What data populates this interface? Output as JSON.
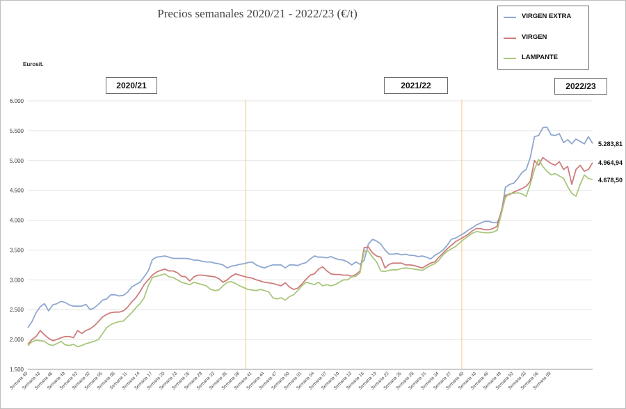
{
  "colors": {
    "extra": "#8fa8d0",
    "virgen": "#cd7d7b",
    "lampante": "#a9c77d",
    "divider": "#f3c87d",
    "grid": "#e4e4e4"
  },
  "chart_data": {
    "type": "line",
    "title": "Precios semanales  2020/21 - 2022/23 (€/t)",
    "ylabel": "Euros/t.",
    "ylim": [
      1500,
      6000
    ],
    "yticks": [
      "1.500",
      "2.000",
      "2.500",
      "3.000",
      "3.500",
      "4.000",
      "4.500",
      "5.000",
      "5.500",
      "6.000"
    ],
    "ytick_values": [
      1500,
      2000,
      2500,
      3000,
      3500,
      4000,
      4500,
      5000,
      5500,
      6000
    ],
    "seasons": [
      {
        "label": "2020/21"
      },
      {
        "label": "2021/22"
      },
      {
        "label": "2022/23"
      }
    ],
    "season_starts": [
      1,
      53,
      105
    ],
    "x_tick_labels": [
      "Semana 40",
      "Semana 43",
      "Semana 46",
      "Semana 49",
      "Semana 52",
      "Semana 02",
      "Semana 05",
      "Semana 08",
      "Semana 11",
      "Semana 14",
      "Semana 17",
      "Semana 20",
      "Semana 23",
      "Semana 26",
      "Semana 29",
      "Semana 32",
      "Semana 35",
      "Semana 38",
      "Semana 41",
      "Semana 44",
      "Semana 47",
      "Semana 50",
      "Semana 01",
      "Semana 04",
      "Semana 07",
      "Semana 10",
      "Semana 13",
      "Semana 16",
      "Semana 19",
      "Semana 22",
      "Semana 25",
      "Semana 28",
      "Semana 31",
      "Semana 34",
      "Semana 37",
      "Semana 40",
      "Semana 43",
      "Semana 46",
      "Semana 49",
      "Semana 52",
      "Semana 03",
      "Semana 06",
      "Semana 09"
    ],
    "series": [
      {
        "name": "VIRGEN EXTRA",
        "last_label": "5.283,81",
        "values": [
          2200,
          2300,
          2450,
          2550,
          2600,
          2480,
          2580,
          2600,
          2640,
          2620,
          2580,
          2560,
          2560,
          2560,
          2590,
          2500,
          2530,
          2590,
          2660,
          2680,
          2750,
          2750,
          2730,
          2740,
          2790,
          2880,
          2920,
          2960,
          3050,
          3150,
          3340,
          3380,
          3390,
          3400,
          3380,
          3360,
          3360,
          3360,
          3360,
          3350,
          3330,
          3330,
          3310,
          3300,
          3300,
          3280,
          3270,
          3250,
          3200,
          3230,
          3240,
          3260,
          3270,
          3290,
          3300,
          3250,
          3220,
          3200,
          3230,
          3250,
          3250,
          3250,
          3200,
          3250,
          3250,
          3240,
          3270,
          3290,
          3350,
          3400,
          3380,
          3380,
          3370,
          3390,
          3360,
          3340,
          3330,
          3300,
          3250,
          3300,
          3260,
          3330,
          3600,
          3680,
          3650,
          3600,
          3500,
          3430,
          3430,
          3440,
          3420,
          3430,
          3410,
          3410,
          3390,
          3400,
          3380,
          3350,
          3410,
          3450,
          3500,
          3580,
          3680,
          3700,
          3740,
          3780,
          3830,
          3870,
          3920,
          3950,
          3980,
          3980,
          3960,
          3960,
          4100,
          4550,
          4600,
          4620,
          4700,
          4800,
          4850,
          5050,
          5400,
          5420,
          5550,
          5560,
          5430,
          5420,
          5450,
          5300,
          5350,
          5280,
          5360,
          5320,
          5280,
          5400,
          5284
        ]
      },
      {
        "name": "VIRGEN",
        "last_label": "4.964,94",
        "values": [
          1920,
          2000,
          2050,
          2150,
          2080,
          2020,
          1980,
          2000,
          2030,
          2050,
          2050,
          2030,
          2150,
          2100,
          2150,
          2180,
          2230,
          2300,
          2380,
          2420,
          2450,
          2460,
          2460,
          2480,
          2540,
          2630,
          2700,
          2800,
          2920,
          3000,
          3080,
          3130,
          3160,
          3180,
          3150,
          3150,
          3120,
          3060,
          3050,
          2980,
          3050,
          3080,
          3080,
          3070,
          3060,
          3050,
          3020,
          2960,
          3000,
          3060,
          3100,
          3080,
          3060,
          3040,
          3030,
          3000,
          2980,
          2960,
          2950,
          2940,
          2920,
          2900,
          2950,
          2880,
          2840,
          2860,
          2930,
          3010,
          3080,
          3100,
          3180,
          3220,
          3150,
          3100,
          3090,
          3090,
          3080,
          3080,
          3060,
          3090,
          3150,
          3540,
          3550,
          3450,
          3400,
          3380,
          3200,
          3260,
          3280,
          3280,
          3280,
          3250,
          3250,
          3240,
          3220,
          3200,
          3240,
          3280,
          3300,
          3380,
          3450,
          3520,
          3580,
          3640,
          3680,
          3720,
          3760,
          3820,
          3860,
          3860,
          3840,
          3840,
          3860,
          3900,
          4150,
          4420,
          4430,
          4470,
          4500,
          4530,
          4570,
          4650,
          5000,
          4920,
          5050,
          5000,
          4950,
          4920,
          4980,
          4850,
          4900,
          4600,
          4850,
          4920,
          4820,
          4850,
          4965
        ]
      },
      {
        "name": "LAMPANTE",
        "last_label": "4.678,50",
        "values": [
          1900,
          1960,
          1990,
          1980,
          1970,
          1920,
          1900,
          1930,
          1970,
          1910,
          1900,
          1920,
          1880,
          1900,
          1930,
          1950,
          1970,
          2000,
          2100,
          2200,
          2250,
          2280,
          2300,
          2310,
          2380,
          2450,
          2530,
          2600,
          2700,
          2900,
          3040,
          3060,
          3080,
          3100,
          3050,
          3040,
          3000,
          2960,
          2940,
          2920,
          2960,
          2940,
          2920,
          2900,
          2840,
          2820,
          2830,
          2900,
          2960,
          2970,
          2940,
          2900,
          2870,
          2840,
          2830,
          2820,
          2840,
          2820,
          2800,
          2700,
          2680,
          2700,
          2660,
          2720,
          2750,
          2820,
          2900,
          2960,
          2940,
          2920,
          2960,
          2900,
          2920,
          2900,
          2920,
          2960,
          3000,
          3000,
          3050,
          3060,
          3120,
          3480,
          3480,
          3380,
          3300,
          3150,
          3140,
          3160,
          3170,
          3170,
          3190,
          3200,
          3190,
          3180,
          3170,
          3160,
          3200,
          3240,
          3270,
          3330,
          3420,
          3480,
          3520,
          3560,
          3620,
          3680,
          3730,
          3780,
          3810,
          3800,
          3790,
          3790,
          3800,
          3830,
          4100,
          4380,
          4450,
          4450,
          4460,
          4440,
          4400,
          4600,
          4850,
          5020,
          4900,
          4820,
          4760,
          4780,
          4740,
          4700,
          4560,
          4450,
          4400,
          4600,
          4760,
          4700,
          4679
        ]
      }
    ]
  }
}
